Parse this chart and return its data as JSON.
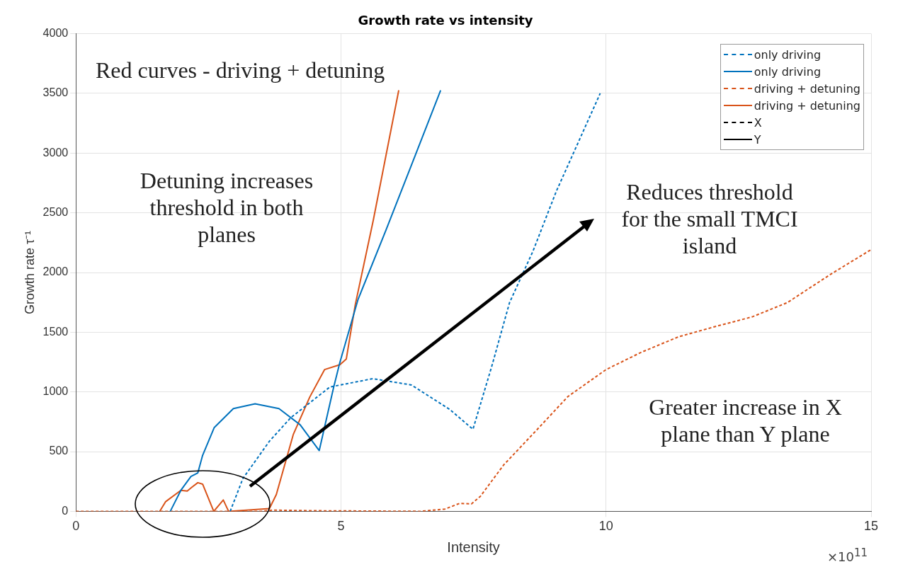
{
  "chart_data": {
    "type": "line",
    "title": "Growth rate vs intensity",
    "xlabel": "Intensity",
    "ylabel": "Growth rate τ⁻¹",
    "xlim": [
      0,
      15
    ],
    "xticks": [
      0,
      5,
      10,
      15
    ],
    "ylim": [
      0,
      4000
    ],
    "yticks": [
      0,
      500,
      1000,
      1500,
      2000,
      2500,
      3000,
      3500,
      4000
    ],
    "grid": true,
    "legend": "top right",
    "marker": "none",
    "annotations": [
      "Red curves - driving + detuning",
      "Detuning increases threshold in both planes",
      "Reduces threshold for the small TMCI island",
      "Greater increase in X plane than Y plane",
      "×10$^{11}$"
    ],
    "series": [
      {
        "name": "only driving",
        "color": "#0072bd",
        "line_style": "dashed",
        "x": [
          2.91,
          3.15,
          3.65,
          4.05,
          4.79,
          5.6,
          6.33,
          7.05,
          7.49,
          7.85,
          8.18,
          8.62,
          9.06,
          9.89
        ],
        "values": [
          0,
          275,
          587,
          783,
          1041,
          1111,
          1058,
          854,
          687,
          1223,
          1748,
          2177,
          2678,
          3500
        ]
      },
      {
        "name": "only driving",
        "color": "#0072bd",
        "line_style": "solid",
        "x": [
          1.78,
          1.98,
          2.17,
          2.3,
          2.39,
          2.61,
          2.97,
          3.38,
          3.83,
          4.23,
          4.59,
          4.86,
          4.98,
          5.32,
          5.85,
          6.33,
          6.88
        ],
        "values": [
          0,
          176,
          292,
          322,
          469,
          702,
          860,
          900,
          860,
          725,
          509,
          1035,
          1248,
          1772,
          2357,
          2900,
          3526
        ]
      },
      {
        "name": "driving + detuning",
        "color": "#d95319",
        "line_style": "dashed",
        "x": [
          0,
          3.5,
          3.7,
          4.5,
          6.5,
          6.96,
          7.24,
          7.46,
          7.63,
          8.07,
          8.73,
          9.28,
          10.0,
          10.66,
          11.37,
          12.04,
          12.76,
          13.42,
          14.24,
          14.99
        ],
        "values": [
          0,
          0,
          10,
          5,
          0,
          19,
          67,
          62,
          126,
          389,
          699,
          961,
          1187,
          1331,
          1462,
          1545,
          1629,
          1748,
          1986,
          2189
        ]
      },
      {
        "name": "driving + detuning",
        "color": "#d95319",
        "line_style": "solid",
        "x": [
          1.58,
          1.69,
          1.98,
          2.1,
          2.18,
          2.3,
          2.39,
          2.6,
          2.78,
          2.88,
          3.65,
          3.78,
          4.1,
          4.41,
          4.69,
          4.98,
          5.1,
          5.27,
          5.61,
          6.09
        ],
        "values": [
          0,
          80,
          176,
          170,
          199,
          240,
          228,
          0,
          95,
          0,
          23,
          140,
          643,
          956,
          1187,
          1228,
          1275,
          1731,
          2439,
          3526
        ]
      },
      {
        "name": "X",
        "color": "#000000",
        "line_style": "dashed"
      },
      {
        "name": "Y",
        "color": "#000000",
        "line_style": "solid"
      }
    ]
  }
}
